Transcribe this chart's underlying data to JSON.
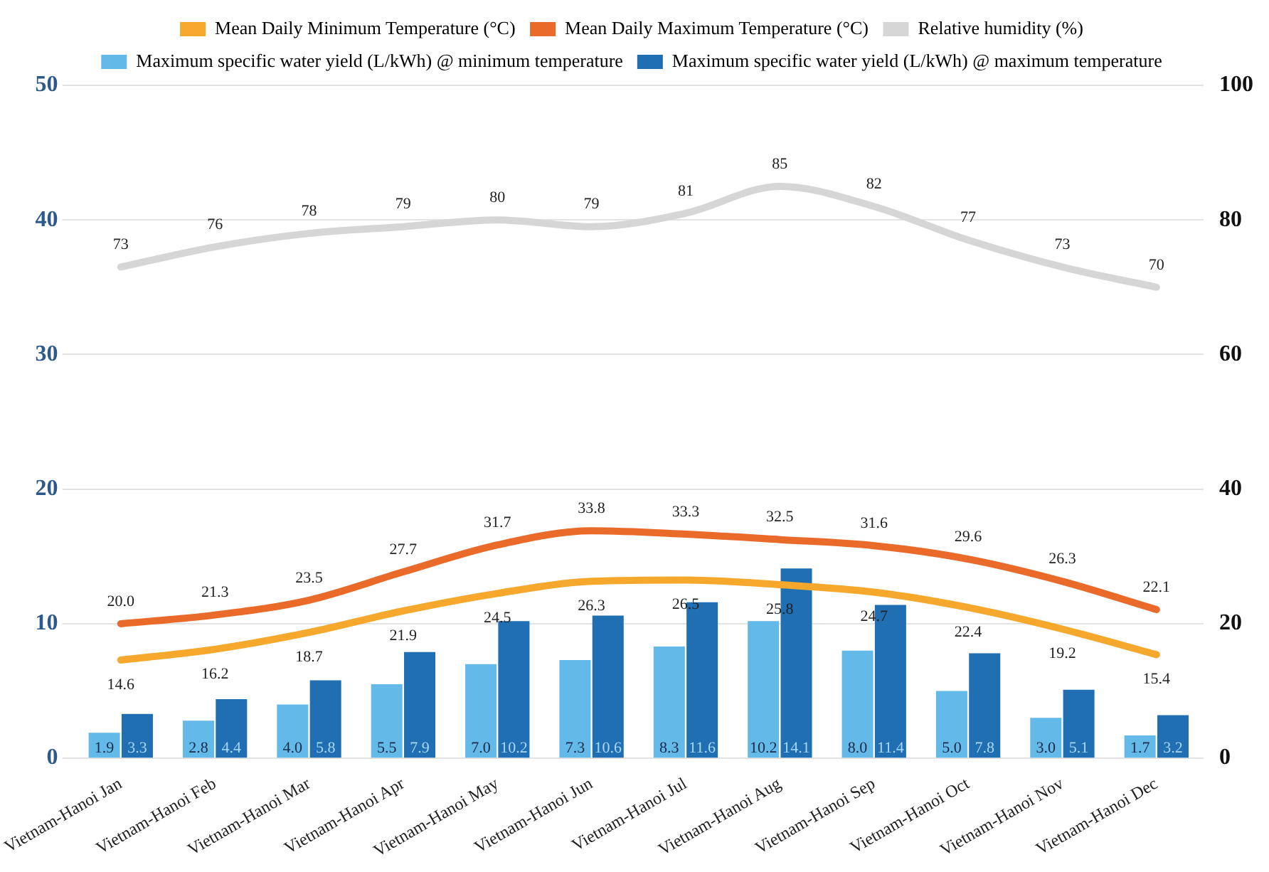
{
  "chart_data": {
    "type": "bar",
    "categories": [
      "Vietnam-Hanoi Jan",
      "Vietnam-Hanoi Feb",
      "Vietnam-Hanoi Mar",
      "Vietnam-Hanoi Apr",
      "Vietnam-Hanoi May",
      "Vietnam-Hanoi Jun",
      "Vietnam-Hanoi Jul",
      "Vietnam-Hanoi Aug",
      "Vietnam-Hanoi Sep",
      "Vietnam-Hanoi Oct",
      "Vietnam-Hanoi Nov",
      "Vietnam-Hanoi Dec"
    ],
    "series": [
      {
        "name": "Mean Daily Minimum Temperature (°C)",
        "type": "line",
        "axis": "y2",
        "color": "#f5a82c",
        "values": [
          14.6,
          16.2,
          18.7,
          21.9,
          24.5,
          26.3,
          26.5,
          25.8,
          24.7,
          22.4,
          19.2,
          15.4
        ],
        "value_labels": [
          "14.6",
          "16.2",
          "18.7",
          "21.9",
          "24.5",
          "26.3",
          "26.5",
          "25.8",
          "24.7",
          "22.4",
          "19.2",
          "15.4"
        ]
      },
      {
        "name": "Mean Daily Maximum Temperature (°C)",
        "type": "line",
        "axis": "y2",
        "color": "#ea6a2a",
        "values": [
          20.0,
          21.3,
          23.5,
          27.7,
          31.7,
          33.8,
          33.3,
          32.5,
          31.6,
          29.6,
          26.3,
          22.1
        ],
        "value_labels": [
          "20.0",
          "21.3",
          "23.5",
          "27.7",
          "31.7",
          "33.8",
          "33.3",
          "32.5",
          "31.6",
          "29.6",
          "26.3",
          "22.1"
        ]
      },
      {
        "name": "Relative humidity (%)",
        "type": "line",
        "axis": "y2",
        "color": "#d6d6d6",
        "values": [
          73,
          76,
          78,
          79,
          80,
          79,
          81,
          85,
          82,
          77,
          73,
          70
        ],
        "value_labels": [
          "73",
          "76",
          "78",
          "79",
          "80",
          "79",
          "81",
          "85",
          "82",
          "77",
          "73",
          "70"
        ]
      },
      {
        "name": "Maximum specific water yield (L/kWh) @ minimum temperature",
        "color": "#63b9e8",
        "values": [
          1.9,
          2.8,
          4.0,
          5.5,
          7.0,
          7.3,
          8.3,
          10.2,
          8.0,
          5.0,
          3.0,
          1.7
        ],
        "value_labels": [
          "1.9",
          "2.8",
          "4.0",
          "5.5",
          "7.0",
          "7.3",
          "8.3",
          "10.2",
          "8.0",
          "5.0",
          "3.0",
          "1.7"
        ]
      },
      {
        "name": "Maximum specific water yield (L/kWh) @ maximum temperature",
        "color": "#1f6fb2",
        "values": [
          3.3,
          4.4,
          5.8,
          7.9,
          10.2,
          10.6,
          11.6,
          14.1,
          11.4,
          7.8,
          5.1,
          3.2
        ],
        "value_labels": [
          "3.3",
          "4.4",
          "5.8",
          "7.9",
          "10.2",
          "10.6",
          "11.6",
          "14.1",
          "11.4",
          "7.8",
          "5.1",
          "3.2"
        ]
      }
    ],
    "ylim": [
      0,
      50
    ],
    "yticks": [
      0,
      10,
      20,
      30,
      40,
      50
    ],
    "y2lim": [
      0,
      100
    ],
    "y2ticks": [
      0,
      20,
      40,
      60,
      80,
      100
    ],
    "grid": "y",
    "legend": "top",
    "marker": "none"
  }
}
